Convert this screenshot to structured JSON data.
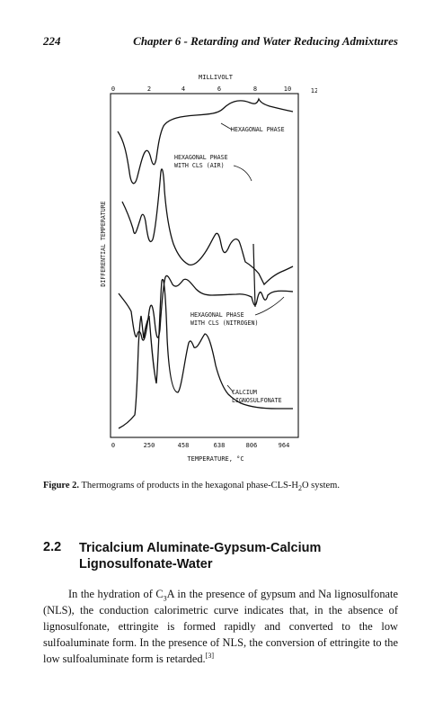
{
  "header": {
    "page_number": "224",
    "chapter_title": "Chapter 6 - Retarding and Water Reducing Admixtures"
  },
  "figure": {
    "top_axis_title": "MILLIVOLT",
    "top_ticks": [
      "0",
      "2",
      "4",
      "6",
      "8",
      "10",
      "12"
    ],
    "bottom_axis_title": "TEMPERATURE, °C",
    "bottom_ticks": [
      "0",
      "250",
      "458",
      "638",
      "806",
      "964"
    ],
    "y_axis_title": "DIFFERENTIAL TEMPERATURE",
    "labels": {
      "hex_phase": "HEXAGONAL PHASE",
      "hex_cls_air_1": "HEXAGONAL PHASE",
      "hex_cls_air_2": "WITH CLS (AIR)",
      "hex_cls_n2_1": "HEXAGONAL PHASE",
      "hex_cls_n2_2": "WITH CLS (NITROGEN)",
      "calcium_1": "CALCIUM",
      "calcium_2": "LIGNOSULFONATE"
    }
  },
  "caption": {
    "label": "Figure 2.",
    "text_before": "Thermograms of products in the hexagonal phase-CLS-H",
    "sub": "2",
    "text_after": "O system."
  },
  "section": {
    "number": "2.2",
    "title_line1": "Tricalcium Aluminate-Gypsum-Calcium",
    "title_line2": "Lignosulfonate-Water"
  },
  "paragraph": {
    "p1": "In the hydration of C",
    "sub": "3",
    "p2": "A in the presence of gypsum and Na lignosulfonate (NLS), the conduction calorimetric curve indicates that, in the absence of lignosulfonate, ettringite is formed rapidly and converted to the low sulfoaluminate form. In the presence of NLS, the conversion of ettringite to the low sulfoaluminate form is retarded.",
    "ref": "[3]"
  }
}
